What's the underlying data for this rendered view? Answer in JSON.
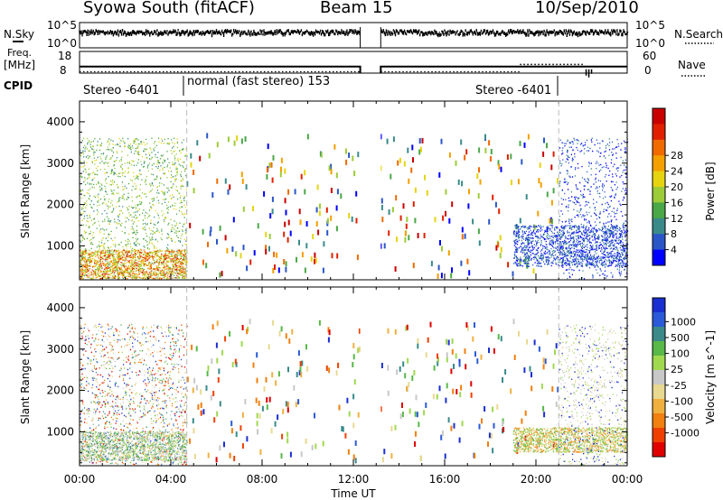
{
  "header": {
    "radar": "Syowa South (fitACF)",
    "beam": "Beam 15",
    "date": "10/Sep/2010"
  },
  "panels": {
    "nsky": {
      "label": "N.Sky",
      "yticks": [
        "10^5",
        "10^0"
      ],
      "right_label": "N.Search",
      "right_yticks": [
        "10^5",
        "10^0"
      ]
    },
    "freq": {
      "label_line1": "Freq.",
      "label_line2": "[MHz]",
      "yticks": [
        "18",
        "8"
      ],
      "right_label": "Nave",
      "right_yticks": [
        "60",
        "0"
      ]
    },
    "cpid": {
      "label": "CPID",
      "segments": [
        "Stereo -6401",
        "normal (fast stereo) 153",
        "Stereo -6401"
      ]
    }
  },
  "axes": {
    "ylabel": "Slant Range [km]",
    "yticks": [
      "1000",
      "2000",
      "3000",
      "4000"
    ],
    "xlabel": "Time UT",
    "xticks": [
      "00:00",
      "04:00",
      "08:00",
      "12:00",
      "16:00",
      "20:00",
      "00:00"
    ]
  },
  "colorbars": {
    "power": {
      "label": "Power [dB]",
      "ticks": [
        "4",
        "8",
        "12",
        "16",
        "20",
        "24",
        "28"
      ],
      "colors": [
        "#0000ff",
        "#2a56c8",
        "#3a8a8a",
        "#4aa848",
        "#9ccc38",
        "#e6d410",
        "#f4a000",
        "#f06a00",
        "#e02000",
        "#c80000"
      ]
    },
    "velocity": {
      "label": "Velocity [m s^-1]",
      "ticks": [
        "1000",
        "500",
        "100",
        "25",
        "-25",
        "-100",
        "-500",
        "-1000"
      ],
      "colors": [
        "#1a2fd0",
        "#2a5ad8",
        "#3a8a8a",
        "#58b848",
        "#a0d850",
        "#c8c8c8",
        "#e8d890",
        "#f0b040",
        "#f08010",
        "#f04000",
        "#e00000"
      ]
    }
  },
  "chart_data": [
    {
      "type": "line",
      "name": "noise_sky_and_search",
      "x_unit": "hours UT",
      "xlim": [
        0,
        24
      ],
      "ylim_log10": [
        0,
        5
      ],
      "gap_hours": [
        12.3,
        13.2
      ],
      "nsky_level_log10": 3.3,
      "nsearch_level_log10": 3.1
    },
    {
      "type": "line",
      "name": "frequency_and_nave",
      "x_unit": "hours UT",
      "xlim": [
        0,
        24
      ],
      "freq_ylim_mhz": [
        8,
        18
      ],
      "freq_mhz": 11,
      "nave_ylim": [
        0,
        60
      ],
      "nave_value": 24
    },
    {
      "type": "heatmap",
      "name": "power",
      "x_unit": "hours UT",
      "xlim": [
        0,
        24
      ],
      "ylim_km": [
        180,
        4500
      ],
      "stereo_boundaries_hours": [
        4.7,
        21.0
      ],
      "data_gap_hours": [
        12.3,
        13.2
      ],
      "regions": [
        {
          "x": [
            0,
            4.7
          ],
          "y": [
            200,
            3600
          ],
          "dominant": "green-yellow",
          "density": "dense"
        },
        {
          "x": [
            0,
            4.7
          ],
          "y": [
            200,
            900
          ],
          "dominant": "orange-red",
          "density": "dense"
        },
        {
          "x": [
            4.7,
            12.3
          ],
          "y": [
            200,
            3600
          ],
          "dominant": "mixed",
          "density": "sparse"
        },
        {
          "x": [
            13.2,
            21.0
          ],
          "y": [
            200,
            3600
          ],
          "dominant": "mixed",
          "density": "sparse"
        },
        {
          "x": [
            19.0,
            24
          ],
          "y": [
            500,
            1500
          ],
          "dominant": "blue",
          "density": "dense"
        },
        {
          "x": [
            21.0,
            24
          ],
          "y": [
            200,
            3600
          ],
          "dominant": "blue",
          "density": "medium"
        }
      ]
    },
    {
      "type": "heatmap",
      "name": "velocity",
      "x_unit": "hours UT",
      "xlim": [
        0,
        24
      ],
      "ylim_km": [
        180,
        4500
      ],
      "stereo_boundaries_hours": [
        4.7,
        21.0
      ],
      "data_gap_hours": [
        12.3,
        13.2
      ],
      "regions": [
        {
          "x": [
            0,
            4.7
          ],
          "y": [
            200,
            3600
          ],
          "dominant": "mixed",
          "density": "dense"
        },
        {
          "x": [
            0,
            4.7
          ],
          "y": [
            300,
            1000
          ],
          "dominant": "green-yellow",
          "density": "dense"
        },
        {
          "x": [
            4.7,
            12.3
          ],
          "y": [
            200,
            3600
          ],
          "dominant": "mixed",
          "density": "sparse"
        },
        {
          "x": [
            13.2,
            21.0
          ],
          "y": [
            200,
            3600
          ],
          "dominant": "mixed",
          "density": "sparse"
        },
        {
          "x": [
            19.0,
            24
          ],
          "y": [
            500,
            1100
          ],
          "dominant": "orange-green",
          "density": "dense"
        },
        {
          "x": [
            21.0,
            24
          ],
          "y": [
            200,
            3600
          ],
          "dominant": "gray",
          "density": "medium"
        }
      ]
    }
  ]
}
